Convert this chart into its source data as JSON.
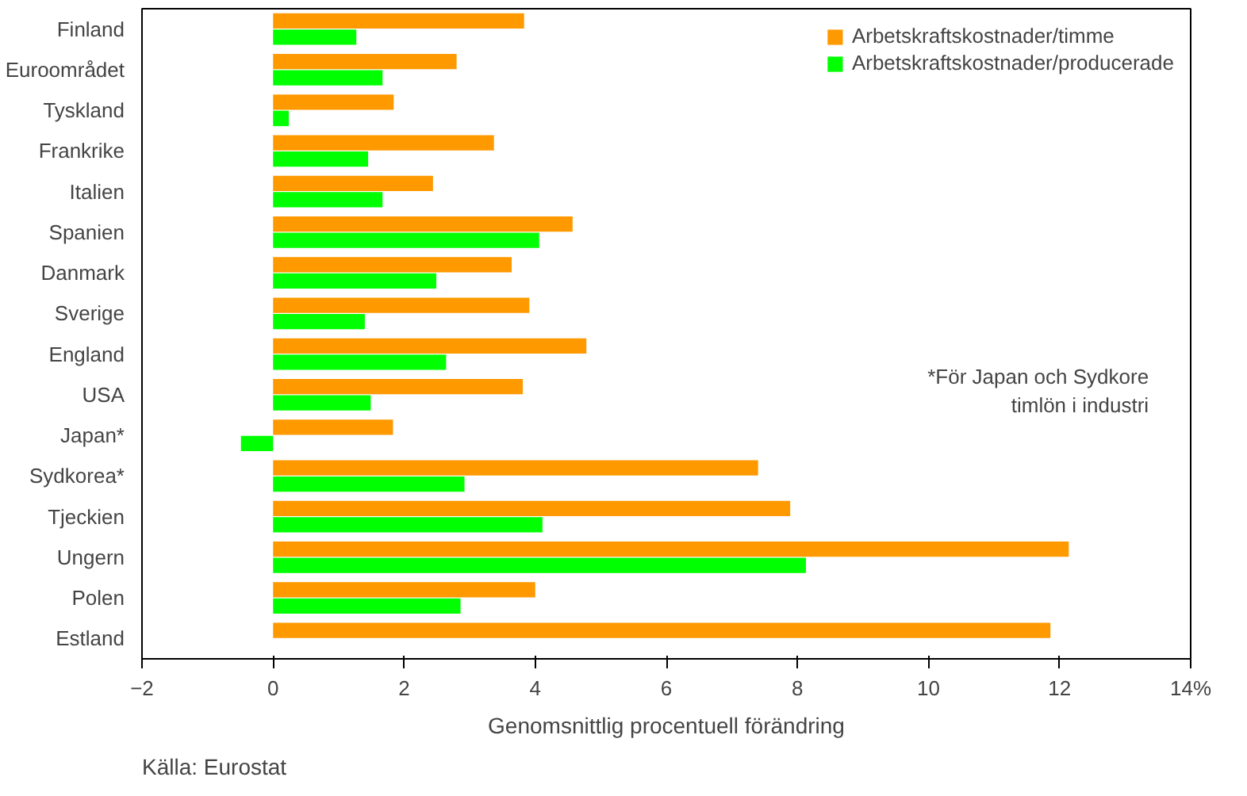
{
  "chart_data": {
    "type": "bar",
    "orientation": "horizontal",
    "categories": [
      "Finland",
      "Euroområdet",
      "Tyskland",
      "Frankrike",
      "Italien",
      "Spanien",
      "Danmark",
      "Sverige",
      "England",
      "USA",
      "Japan*",
      "Sydkorea*",
      "Tjeckien",
      "Ungern",
      "Polen",
      "Estland"
    ],
    "series": [
      {
        "name": "Arbetskraftskostnader/timme",
        "color": "#ff9900",
        "values": [
          3.83,
          2.8,
          1.84,
          3.37,
          2.44,
          4.57,
          3.64,
          3.91,
          4.78,
          3.81,
          1.83,
          7.4,
          7.89,
          12.14,
          4.0,
          11.86
        ]
      },
      {
        "name": "Arbetskraftskostnader/producerade",
        "color": "#00ff00",
        "values": [
          1.27,
          1.67,
          0.24,
          1.45,
          1.67,
          4.06,
          2.49,
          1.4,
          2.64,
          1.49,
          -0.49,
          2.92,
          4.11,
          8.13,
          2.86,
          null
        ]
      }
    ],
    "xlabel": "Genomsnittlig procentuell förändring",
    "xlim": [
      -2,
      14
    ],
    "xticks": [
      -2,
      0,
      2,
      4,
      6,
      8,
      10,
      12,
      {
        "value": 14,
        "label": "14%"
      }
    ],
    "grid": false,
    "legend": "top right",
    "annotations": [
      "*För Japan och Sydkore\ntimlön i industri",
      "Källa: Eurostat"
    ]
  }
}
